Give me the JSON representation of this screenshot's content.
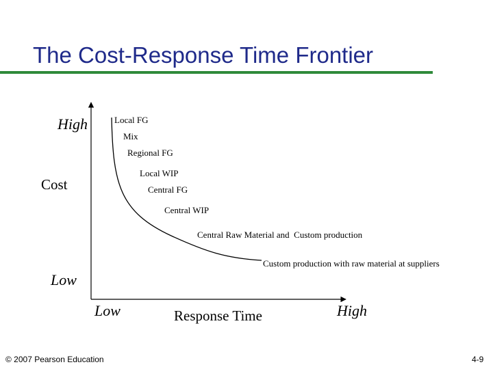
{
  "slide": {
    "title": "The Cost-Response Time Frontier"
  },
  "axes": {
    "y_label": "Cost",
    "y_high": "High",
    "y_low": "Low",
    "x_label": "Response Time",
    "x_low": "Low",
    "x_high": "High"
  },
  "frontier_points": [
    "Local FG",
    "Mix",
    "Regional FG",
    "Local WIP",
    "Central FG",
    "Central WIP",
    "Central Raw Material and  Custom production",
    "Custom production with raw material at suppliers"
  ],
  "footer": {
    "copyright": "© 2007 Pearson Education",
    "page": "4-9"
  },
  "colors": {
    "title": "#1f2a8a",
    "rule": "#2f8a3a"
  }
}
